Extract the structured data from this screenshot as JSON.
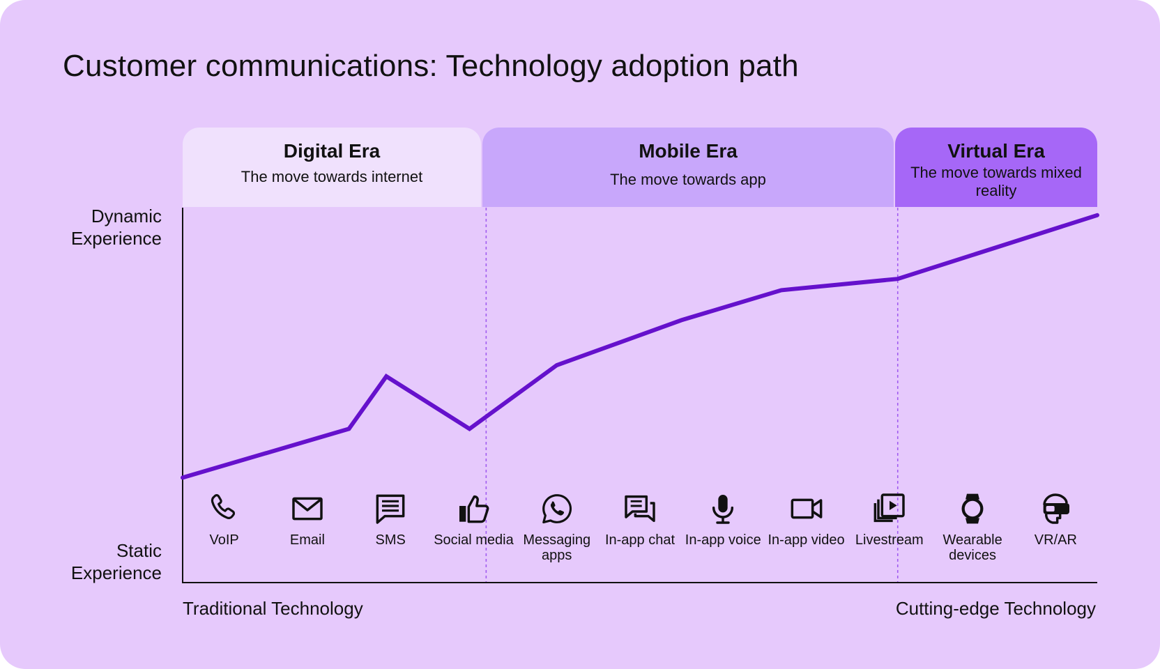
{
  "title": "Customer communications: Technology adoption path",
  "eras": [
    {
      "name": "Digital Era",
      "subtitle": "The move towards internet"
    },
    {
      "name": "Mobile Era",
      "subtitle": "The move towards app"
    },
    {
      "name": "Virtual Era",
      "subtitle": "The move towards mixed reality"
    }
  ],
  "chart_data": {
    "type": "line",
    "title": "Customer communications: Technology adoption path",
    "ylabel_top": "Dynamic Experience",
    "ylabel_bottom": "Static Experience",
    "xlabel_left": "Traditional Technology",
    "xlabel_right": "Cutting-edge Technology",
    "xlim": [
      0,
      11
    ],
    "ylim": [
      0,
      100
    ],
    "grid": false,
    "line_color": "#6511cc",
    "series": [
      {
        "name": "Experience",
        "x": [
          0,
          2,
          2.45,
          3.45,
          4.5,
          6,
          7.2,
          8.6,
          11
        ],
        "y": [
          28,
          41,
          55,
          41,
          58,
          70,
          78,
          81,
          98
        ]
      }
    ],
    "era_boundaries": [
      3.65,
      8.6
    ],
    "categories": [
      {
        "label": "VoIP",
        "icon": "phone-icon"
      },
      {
        "label": "Email",
        "icon": "envelope-icon"
      },
      {
        "label": "SMS",
        "icon": "sms-icon"
      },
      {
        "label": "Social media",
        "icon": "thumbs-up-icon"
      },
      {
        "label": "Messaging apps",
        "icon": "whatsapp-icon"
      },
      {
        "label": "In-app chat",
        "icon": "chat-bubbles-icon"
      },
      {
        "label": "In-app voice",
        "icon": "microphone-icon"
      },
      {
        "label": "In-app video",
        "icon": "video-camera-icon"
      },
      {
        "label": "Livestream",
        "icon": "play-stack-icon"
      },
      {
        "label": "Wearable devices",
        "icon": "smartwatch-icon"
      },
      {
        "label": "VR/AR",
        "icon": "vr-headset-icon"
      }
    ]
  }
}
